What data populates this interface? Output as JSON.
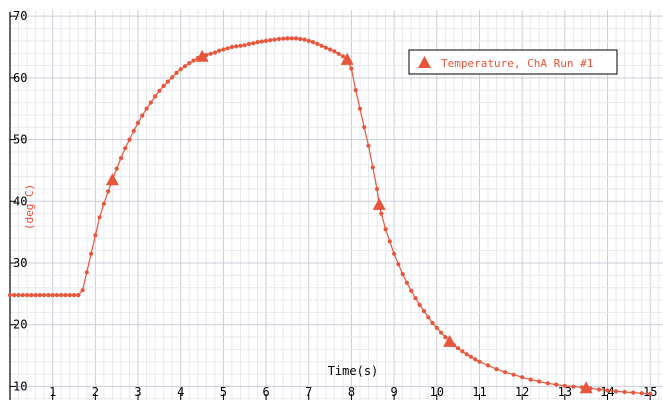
{
  "chart_data": {
    "type": "line",
    "xlabel": "Time(s)",
    "ylabel": "(deg C)",
    "xlim": [
      0,
      15.3
    ],
    "ylim": [
      7.8,
      71
    ],
    "x_ticks": [
      1,
      2,
      3,
      4,
      5,
      6,
      7,
      8,
      9,
      10,
      11,
      12,
      13,
      14,
      15
    ],
    "y_ticks": [
      10,
      20,
      30,
      40,
      50,
      60,
      70
    ],
    "grid": true,
    "legend_position": "top-right",
    "series": [
      {
        "name": "Temperature, ChA Run #1",
        "color": "#e8553b",
        "triangle_markers": [
          {
            "x": 2.4,
            "y": 43.5
          },
          {
            "x": 4.5,
            "y": 63.5
          },
          {
            "x": 7.9,
            "y": 63.0
          },
          {
            "x": 8.65,
            "y": 39.5
          },
          {
            "x": 10.3,
            "y": 17.3
          },
          {
            "x": 13.5,
            "y": 9.8
          }
        ],
        "points": [
          [
            0.0,
            24.8
          ],
          [
            0.1,
            24.8
          ],
          [
            0.2,
            24.8
          ],
          [
            0.3,
            24.8
          ],
          [
            0.4,
            24.8
          ],
          [
            0.5,
            24.8
          ],
          [
            0.6,
            24.8
          ],
          [
            0.7,
            24.8
          ],
          [
            0.8,
            24.8
          ],
          [
            0.9,
            24.8
          ],
          [
            1.0,
            24.8
          ],
          [
            1.1,
            24.8
          ],
          [
            1.2,
            24.8
          ],
          [
            1.3,
            24.8
          ],
          [
            1.4,
            24.8
          ],
          [
            1.5,
            24.8
          ],
          [
            1.6,
            24.8
          ],
          [
            1.7,
            25.6
          ],
          [
            1.8,
            28.5
          ],
          [
            1.9,
            31.5
          ],
          [
            2.0,
            34.5
          ],
          [
            2.1,
            37.4
          ],
          [
            2.2,
            39.6
          ],
          [
            2.3,
            41.6
          ],
          [
            2.4,
            43.5
          ],
          [
            2.5,
            45.3
          ],
          [
            2.6,
            47.0
          ],
          [
            2.7,
            48.6
          ],
          [
            2.8,
            50.0
          ],
          [
            2.9,
            51.4
          ],
          [
            3.0,
            52.7
          ],
          [
            3.1,
            53.9
          ],
          [
            3.2,
            55.0
          ],
          [
            3.3,
            56.0
          ],
          [
            3.4,
            57.0
          ],
          [
            3.5,
            57.9
          ],
          [
            3.6,
            58.7
          ],
          [
            3.7,
            59.4
          ],
          [
            3.8,
            60.1
          ],
          [
            3.9,
            60.8
          ],
          [
            4.0,
            61.4
          ],
          [
            4.1,
            61.9
          ],
          [
            4.2,
            62.4
          ],
          [
            4.3,
            62.8
          ],
          [
            4.4,
            63.2
          ],
          [
            4.5,
            63.5
          ],
          [
            4.6,
            63.7
          ],
          [
            4.7,
            63.9
          ],
          [
            4.8,
            64.1
          ],
          [
            4.9,
            64.4
          ],
          [
            5.0,
            64.6
          ],
          [
            5.1,
            64.8
          ],
          [
            5.2,
            65.0
          ],
          [
            5.3,
            65.1
          ],
          [
            5.4,
            65.2
          ],
          [
            5.5,
            65.3
          ],
          [
            5.6,
            65.5
          ],
          [
            5.7,
            65.6
          ],
          [
            5.8,
            65.8
          ],
          [
            5.9,
            65.9
          ],
          [
            6.0,
            66.0
          ],
          [
            6.1,
            66.1
          ],
          [
            6.2,
            66.2
          ],
          [
            6.3,
            66.3
          ],
          [
            6.4,
            66.35
          ],
          [
            6.5,
            66.4
          ],
          [
            6.6,
            66.4
          ],
          [
            6.7,
            66.4
          ],
          [
            6.8,
            66.3
          ],
          [
            6.9,
            66.2
          ],
          [
            7.0,
            66.0
          ],
          [
            7.1,
            65.8
          ],
          [
            7.2,
            65.5
          ],
          [
            7.3,
            65.2
          ],
          [
            7.4,
            64.9
          ],
          [
            7.5,
            64.6
          ],
          [
            7.6,
            64.3
          ],
          [
            7.7,
            63.9
          ],
          [
            7.8,
            63.5
          ],
          [
            7.9,
            63.0
          ],
          [
            8.0,
            61.5
          ],
          [
            8.1,
            58.0
          ],
          [
            8.2,
            55.0
          ],
          [
            8.3,
            52.0
          ],
          [
            8.4,
            49.0
          ],
          [
            8.5,
            45.5
          ],
          [
            8.6,
            42.0
          ],
          [
            8.65,
            39.5
          ],
          [
            8.7,
            38.0
          ],
          [
            8.8,
            35.5
          ],
          [
            8.9,
            33.5
          ],
          [
            9.0,
            31.5
          ],
          [
            9.1,
            29.8
          ],
          [
            9.2,
            28.2
          ],
          [
            9.3,
            26.8
          ],
          [
            9.4,
            25.5
          ],
          [
            9.5,
            24.3
          ],
          [
            9.6,
            23.2
          ],
          [
            9.7,
            22.2
          ],
          [
            9.8,
            21.2
          ],
          [
            9.9,
            20.3
          ],
          [
            10.0,
            19.5
          ],
          [
            10.1,
            18.7
          ],
          [
            10.2,
            18.0
          ],
          [
            10.3,
            17.3
          ],
          [
            10.4,
            16.7
          ],
          [
            10.5,
            16.2
          ],
          [
            10.6,
            15.7
          ],
          [
            10.7,
            15.2
          ],
          [
            10.8,
            14.8
          ],
          [
            10.9,
            14.4
          ],
          [
            11.0,
            14.0
          ],
          [
            11.2,
            13.4
          ],
          [
            11.4,
            12.8
          ],
          [
            11.6,
            12.3
          ],
          [
            11.8,
            11.9
          ],
          [
            12.0,
            11.5
          ],
          [
            12.2,
            11.1
          ],
          [
            12.4,
            10.8
          ],
          [
            12.6,
            10.5
          ],
          [
            12.8,
            10.3
          ],
          [
            13.0,
            10.1
          ],
          [
            13.2,
            9.95
          ],
          [
            13.4,
            9.85
          ],
          [
            13.5,
            9.8
          ],
          [
            13.6,
            9.7
          ],
          [
            13.8,
            9.5
          ],
          [
            14.0,
            9.35
          ],
          [
            14.2,
            9.2
          ],
          [
            14.4,
            9.1
          ],
          [
            14.6,
            9.0
          ],
          [
            14.8,
            8.9
          ],
          [
            15.0,
            8.8
          ]
        ]
      }
    ]
  }
}
